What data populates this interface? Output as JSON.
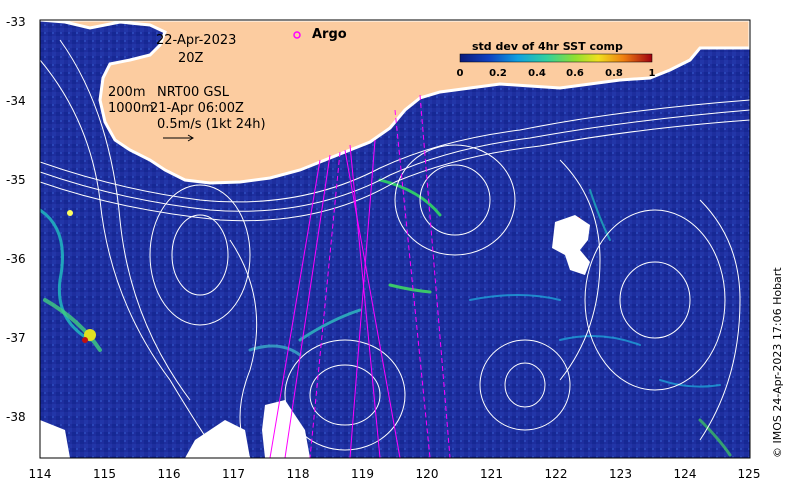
{
  "map": {
    "date": "22-Apr-2023",
    "hour": "20Z",
    "argo_label": "Argo",
    "contour_labels": [
      "200m",
      "1000m"
    ],
    "product": "NRT00 GSL",
    "current_time": "21-Apr 06:00Z",
    "vector_scale": "0.5m/s (1kt 24h)",
    "colorbar": {
      "title": "std dev of 4hr SST comp",
      "ticks": [
        "0",
        "0.2",
        "0.4",
        "0.6",
        "0.8",
        "1"
      ],
      "range": [
        0,
        1
      ]
    },
    "x_ticks": [
      "114",
      "115",
      "116",
      "117",
      "118",
      "119",
      "120",
      "121",
      "122",
      "123",
      "124",
      "125"
    ],
    "y_ticks": [
      "-33",
      "-34",
      "-35",
      "-36",
      "-37",
      "-38"
    ],
    "lon_range": [
      114,
      125
    ],
    "lat_range": [
      -38.5,
      -32.9
    ],
    "credit": "© IMOS 24-Apr-2023 17:06 Hobart",
    "colors": {
      "ocean": "#1a2a9a",
      "land": "#fccca0",
      "contour": "#ffffff",
      "track": "#ff00ff",
      "argo": "#ff00ff"
    }
  }
}
